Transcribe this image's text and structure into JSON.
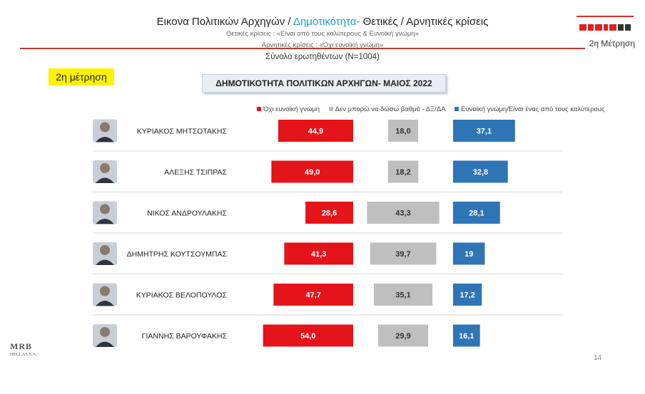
{
  "header": {
    "title_part1": "Εικονα Πολιτικών Αρχηγών  / ",
    "title_highlight": "Δημοτικότητα-",
    "title_part2": " Θετικές / Αρνητικές κρίσεις",
    "subtitle_positive": "Θετικές κρίσεις : «Είναι από τους καλύτερους &  Ευνοϊκή γνώμη»",
    "subtitle_negative": "Αρνητικές κρίσεις : «Όχι ευνοϊκή γνώμη»",
    "sample": "Σύνολο ερωτηθέντων (N=1004)",
    "measurement_label": "2η Μέτρηση",
    "badge": "2η μέτρηση",
    "page_number": "14"
  },
  "brand": {
    "logo_name": "media-logo-icon",
    "mrb_text": "MRB",
    "mrb_sub": "HELLAS S.A."
  },
  "colors": {
    "negative": "#e5141b",
    "neutral": "#bfbfbf",
    "positive": "#2e75b6",
    "title_highlight": "#1aa0c8",
    "rule": "#c0392b"
  },
  "chart_data": {
    "type": "bar",
    "title": "ΔΗΜΟΤΙΚΟΤΗΤΑ ΠΟΛΙΤΙΚΩΝ ΑΡΧΗΓΩΝ- ΜΑΙΟΣ 2022",
    "legend_position": "top",
    "categories": [
      "ΚΥΡΙΑΚΟΣ ΜΗΤΣΟΤΑΚΗΣ",
      "ΑΛΕΞΗΣ ΤΣΙΠΡΑΣ",
      "ΝΙΚΟΣ ΑΝΔΡΟΥΛΑΚΗΣ",
      "ΔΗΜΗΤΡΗΣ ΚΟΥΤΣΟΥΜΠΑΣ",
      "ΚΥΡΙΑΚΟΣ ΒΕΛΟΠΟΥΛΟΣ",
      "ΓΙΑΝΝΗΣ ΒΑΡΟΥΦΑΚΗΣ"
    ],
    "series": [
      {
        "name": "Όχι ευνοϊκή γνώμη",
        "values": [
          44.9,
          49.0,
          28.6,
          41.3,
          47.7,
          54.0
        ],
        "labels": [
          "44,9",
          "49,0",
          "28,6",
          "41,3",
          "47,7",
          "54,0"
        ]
      },
      {
        "name": "Δεν μπορώ να δώσω βαθμό - ΔΞ/ΔΑ",
        "values": [
          18.0,
          18.2,
          43.3,
          39.7,
          35.1,
          29.9
        ],
        "labels": [
          "18,0",
          "18,2",
          "43,3",
          "39,7",
          "35,1",
          "29,9"
        ]
      },
      {
        "name": "Ευνοϊκή γνώμη/Είναι ένας από τους καλύτερους",
        "values": [
          37.1,
          32.8,
          28.1,
          19,
          17.2,
          16.1
        ],
        "labels": [
          "37,1",
          "32,8",
          "28,1",
          "19",
          "17,2",
          "16,1"
        ]
      }
    ]
  }
}
